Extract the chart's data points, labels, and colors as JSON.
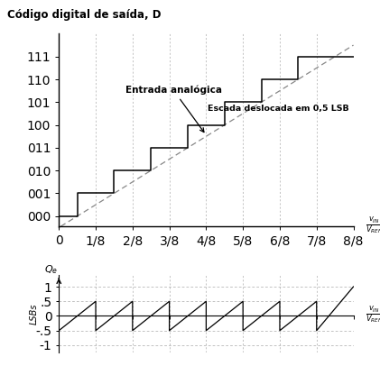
{
  "title_top": "Código digital de saída, D",
  "yticks_labels": [
    "000",
    "001",
    "010",
    "011",
    "100",
    "101",
    "110",
    "111"
  ],
  "xtick_fracs": [
    "0",
    "1/8",
    "2/8",
    "3/8",
    "4/8",
    "5/8",
    "6/8",
    "7/8",
    "8/8"
  ],
  "xlabel_frac_top": "$\\frac{v_{IN}}{V_{REF}}$",
  "xlabel_frac_bot": "$\\frac{v_{IN}}{V_{REF}}$",
  "ylabel_bot_Qe": "$Q_e$",
  "ylabel_bot_LSBs": "LSBs",
  "annotation1": "Entrada analógica",
  "annotation2": "Escada deslocada em 0,5 LSB",
  "bg_color": "#ffffff",
  "line_color": "#000000",
  "dashed_color": "#888888",
  "grid_color": "#aaaaaa"
}
